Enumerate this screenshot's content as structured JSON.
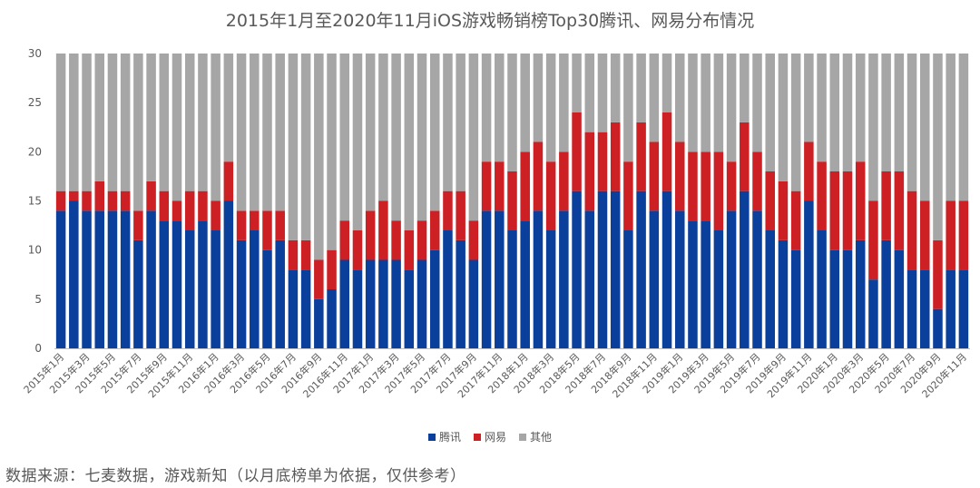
{
  "title": "2015年1月至2020年11月iOS游戏畅销榜Top30腾讯、网易分布情况",
  "source": "数据来源：七麦数据，游戏新知（以月底榜单为依据，仅供参考）",
  "chart_data": {
    "type": "bar",
    "stacked": true,
    "title": "2015年1月至2020年11月iOS游戏畅销榜Top30腾讯、网易分布情况",
    "ylim": [
      0,
      30
    ],
    "yticks": [
      0,
      5,
      10,
      15,
      20,
      25,
      30
    ],
    "grid": false,
    "legend_position": "bottom",
    "categories": [
      "2015年1月",
      "2015年2月",
      "2015年3月",
      "2015年4月",
      "2015年5月",
      "2015年6月",
      "2015年7月",
      "2015年8月",
      "2015年9月",
      "2015年10月",
      "2015年11月",
      "2015年12月",
      "2016年1月",
      "2016年2月",
      "2016年3月",
      "2016年4月",
      "2016年5月",
      "2016年6月",
      "2016年7月",
      "2016年8月",
      "2016年9月",
      "2016年10月",
      "2016年11月",
      "2016年12月",
      "2017年1月",
      "2017年2月",
      "2017年3月",
      "2017年4月",
      "2017年5月",
      "2017年6月",
      "2017年7月",
      "2017年8月",
      "2017年9月",
      "2017年10月",
      "2017年11月",
      "2017年12月",
      "2018年1月",
      "2018年2月",
      "2018年3月",
      "2018年4月",
      "2018年5月",
      "2018年6月",
      "2018年7月",
      "2018年8月",
      "2018年9月",
      "2018年10月",
      "2018年11月",
      "2018年12月",
      "2019年1月",
      "2019年2月",
      "2019年3月",
      "2019年4月",
      "2019年5月",
      "2019年6月",
      "2019年7月",
      "2019年8月",
      "2019年9月",
      "2019年10月",
      "2019年11月",
      "2019年12月",
      "2020年1月",
      "2020年2月",
      "2020年3月",
      "2020年4月",
      "2020年5月",
      "2020年6月",
      "2020年7月",
      "2020年8月",
      "2020年9月",
      "2020年10月",
      "2020年11月"
    ],
    "series": [
      {
        "name": "腾讯",
        "color": "#0b3f9c",
        "values": [
          14,
          15,
          14,
          14,
          14,
          14,
          11,
          14,
          13,
          13,
          12,
          13,
          12,
          15,
          11,
          12,
          10,
          11,
          8,
          8,
          5,
          6,
          9,
          8,
          9,
          9,
          9,
          8,
          9,
          10,
          12,
          11,
          9,
          14,
          14,
          12,
          13,
          14,
          12,
          14,
          16,
          14,
          16,
          16,
          12,
          16,
          14,
          16,
          14,
          13,
          13,
          12,
          14,
          16,
          14,
          12,
          11,
          10,
          15,
          12,
          10,
          10,
          11,
          7,
          11,
          10,
          8,
          8,
          4,
          8,
          8
        ]
      },
      {
        "name": "网易",
        "color": "#cd2024",
        "values": [
          2,
          1,
          2,
          3,
          2,
          2,
          3,
          3,
          3,
          2,
          4,
          3,
          3,
          4,
          3,
          2,
          4,
          3,
          3,
          3,
          4,
          4,
          4,
          4,
          5,
          6,
          4,
          4,
          4,
          4,
          4,
          5,
          4,
          5,
          5,
          6,
          7,
          7,
          7,
          6,
          8,
          8,
          6,
          7,
          7,
          7,
          7,
          8,
          7,
          7,
          7,
          8,
          5,
          7,
          6,
          6,
          6,
          6,
          6,
          7,
          8,
          8,
          8,
          8,
          7,
          8,
          8,
          7,
          7,
          7,
          7
        ]
      },
      {
        "name": "其他",
        "color": "#a6a6a6",
        "values": [
          14,
          14,
          14,
          13,
          14,
          14,
          16,
          13,
          14,
          15,
          14,
          14,
          15,
          11,
          16,
          16,
          16,
          16,
          19,
          19,
          21,
          20,
          17,
          18,
          16,
          15,
          17,
          18,
          17,
          16,
          14,
          14,
          17,
          11,
          11,
          12,
          10,
          9,
          11,
          10,
          6,
          8,
          8,
          7,
          11,
          7,
          9,
          6,
          9,
          10,
          10,
          10,
          11,
          7,
          10,
          12,
          13,
          14,
          9,
          11,
          12,
          12,
          11,
          15,
          12,
          12,
          14,
          15,
          19,
          15,
          15
        ]
      }
    ],
    "x_tick_labels": [
      "2015年1月",
      "2015年3月",
      "2015年5月",
      "2015年7月",
      "2015年9月",
      "2015年11月",
      "2016年1月",
      "2016年3月",
      "2016年5月",
      "2016年7月",
      "2016年9月",
      "2016年11月",
      "2017年1月",
      "2017年3月",
      "2017年5月",
      "2017年7月",
      "2017年9月",
      "2017年11月",
      "2018年1月",
      "2018年3月",
      "2018年5月",
      "2018年7月",
      "2018年9月",
      "2018年11月",
      "2019年1月",
      "2019年3月",
      "2019年5月",
      "2019年7月",
      "2019年9月",
      "2019年11月",
      "2020年1月",
      "2020年3月",
      "2020年5月",
      "2020年7月",
      "2020年9月",
      "2020年11月"
    ]
  }
}
